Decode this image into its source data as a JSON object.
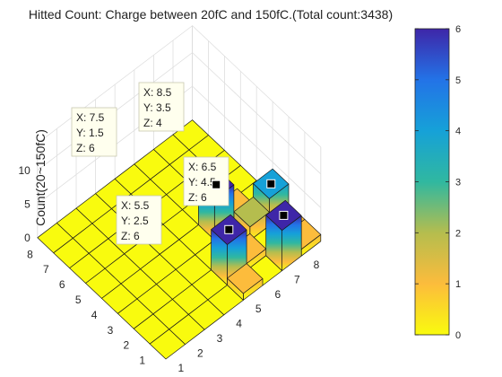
{
  "chart_data": {
    "type": "bar3d",
    "title": "Hitted Count: Charge between 20fC and 150fC.(Total count:3438)",
    "zlabel": "Count(20~150fC)",
    "x_ticks": [
      "1",
      "2",
      "3",
      "4",
      "5",
      "6",
      "7",
      "8"
    ],
    "y_ticks": [
      "1",
      "2",
      "3",
      "4",
      "5",
      "6",
      "7",
      "8"
    ],
    "z_ticks": [
      "0",
      "5",
      "10"
    ],
    "colorbar": {
      "ticks": [
        "0",
        "1",
        "2",
        "3",
        "4",
        "5",
        "6"
      ],
      "range": [
        0,
        6
      ],
      "colormap": "parula-reversed"
    },
    "bars": [
      {
        "x": 5.5,
        "y": 1.5,
        "z": 1
      },
      {
        "x": 7.5,
        "y": 1.5,
        "z": 6
      },
      {
        "x": 8.5,
        "y": 1.5,
        "z": 1
      },
      {
        "x": 5.5,
        "y": 2.5,
        "z": 6
      },
      {
        "x": 6.5,
        "y": 2.5,
        "z": 1
      },
      {
        "x": 8.5,
        "y": 2.5,
        "z": 1
      },
      {
        "x": 7.5,
        "y": 3.5,
        "z": 2
      },
      {
        "x": 8.5,
        "y": 3.5,
        "z": 4
      },
      {
        "x": 6.5,
        "y": 4.5,
        "z": 6
      },
      {
        "x": 7.5,
        "y": 4.5,
        "z": 1
      }
    ],
    "datatips": [
      {
        "x": "7.5",
        "y": "1.5",
        "z": "6",
        "lx": "X: 7.5",
        "ly": "Y: 1.5",
        "lz": "Z: 6"
      },
      {
        "x": "8.5",
        "y": "3.5",
        "z": "4",
        "lx": "X: 8.5",
        "ly": "Y: 3.5",
        "lz": "Z: 4"
      },
      {
        "x": "6.5",
        "y": "4.5",
        "z": "6",
        "lx": "X: 6.5",
        "ly": "Y: 4.5",
        "lz": "Z: 6"
      },
      {
        "x": "5.5",
        "y": "2.5",
        "z": "6",
        "lx": "X: 5.5",
        "ly": "Y: 2.5",
        "lz": "Z: 6"
      }
    ]
  }
}
